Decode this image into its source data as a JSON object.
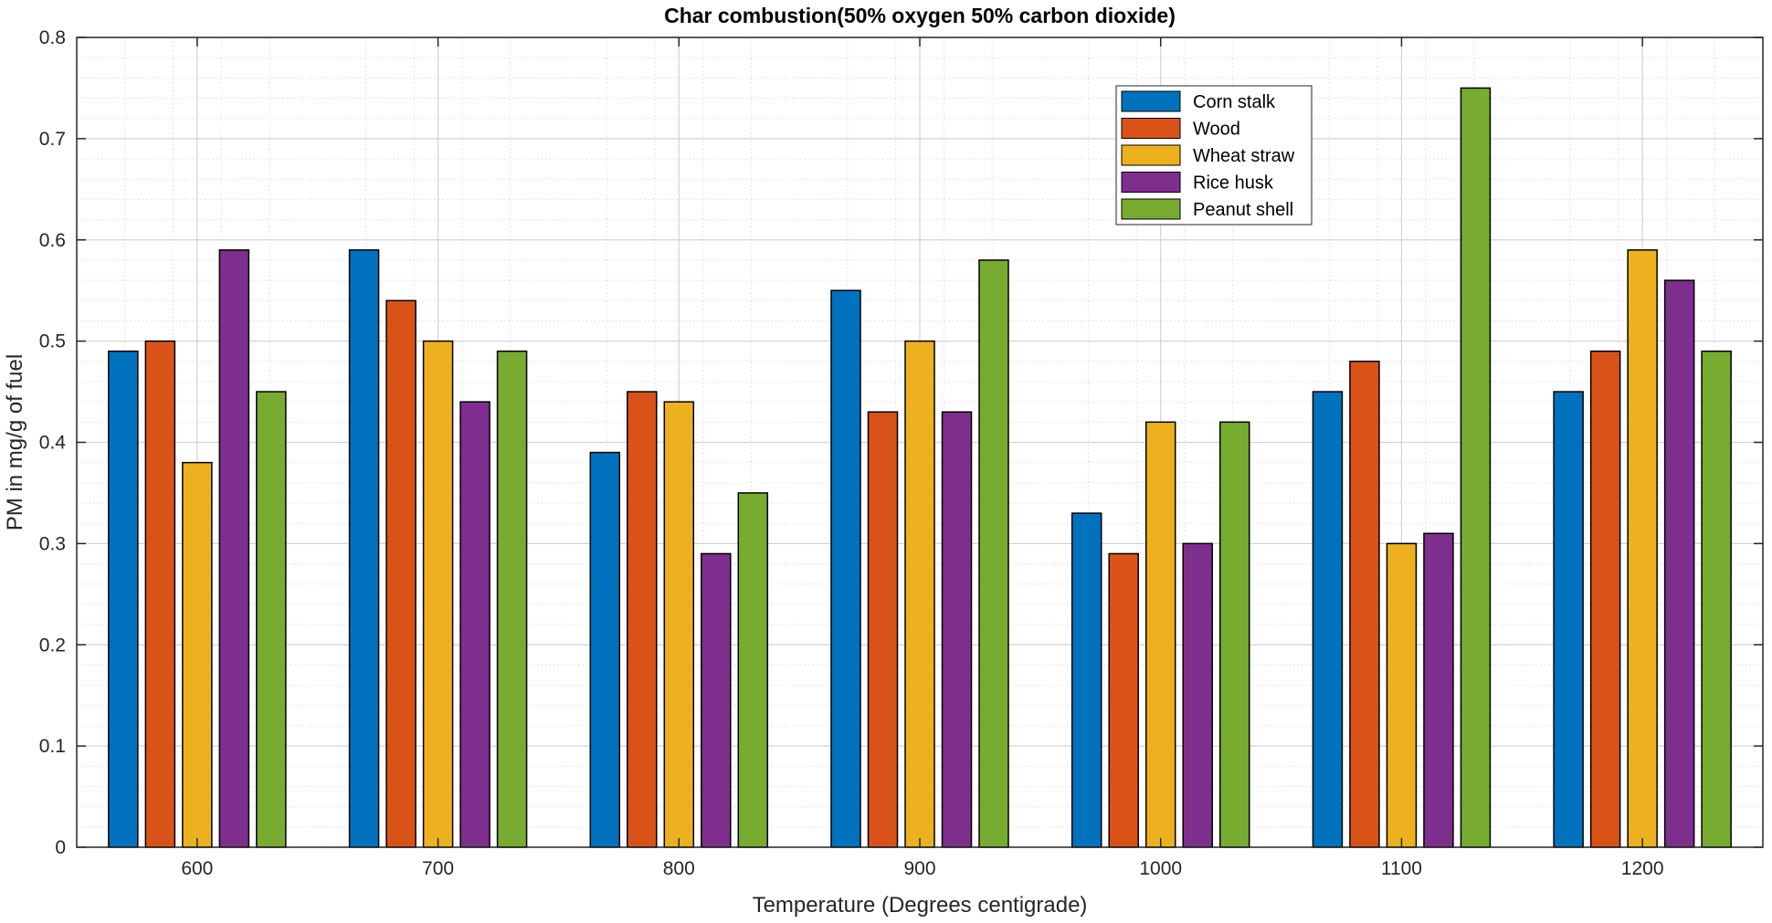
{
  "chart_data": {
    "type": "bar",
    "title": "Char combustion(50% oxygen 50% carbon dioxide)",
    "xlabel": "Temperature (Degrees centigrade)",
    "ylabel": "PM in mg/g of fuel",
    "categories": [
      "600",
      "700",
      "800",
      "900",
      "1000",
      "1100",
      "1200"
    ],
    "ylim": [
      0,
      0.8
    ],
    "yticks": [
      "0",
      "0.1",
      "0.2",
      "0.3",
      "0.4",
      "0.5",
      "0.6",
      "0.7",
      "0.8"
    ],
    "grid": true,
    "legend_position": "top-right",
    "series": [
      {
        "name": "Corn stalk",
        "color": "#0072BD",
        "values": [
          0.49,
          0.59,
          0.39,
          0.55,
          0.33,
          0.45,
          0.45
        ]
      },
      {
        "name": "Wood",
        "color": "#D95319",
        "values": [
          0.5,
          0.54,
          0.45,
          0.43,
          0.29,
          0.48,
          0.49
        ]
      },
      {
        "name": "Wheat straw",
        "color": "#EDB120",
        "values": [
          0.38,
          0.5,
          0.44,
          0.5,
          0.42,
          0.3,
          0.59
        ]
      },
      {
        "name": "Rice husk",
        "color": "#7E2F8E",
        "values": [
          0.59,
          0.44,
          0.29,
          0.43,
          0.3,
          0.31,
          0.56
        ]
      },
      {
        "name": "Peanut shell",
        "color": "#77AC30",
        "values": [
          0.45,
          0.49,
          0.35,
          0.58,
          0.42,
          0.75,
          0.49
        ]
      }
    ]
  }
}
